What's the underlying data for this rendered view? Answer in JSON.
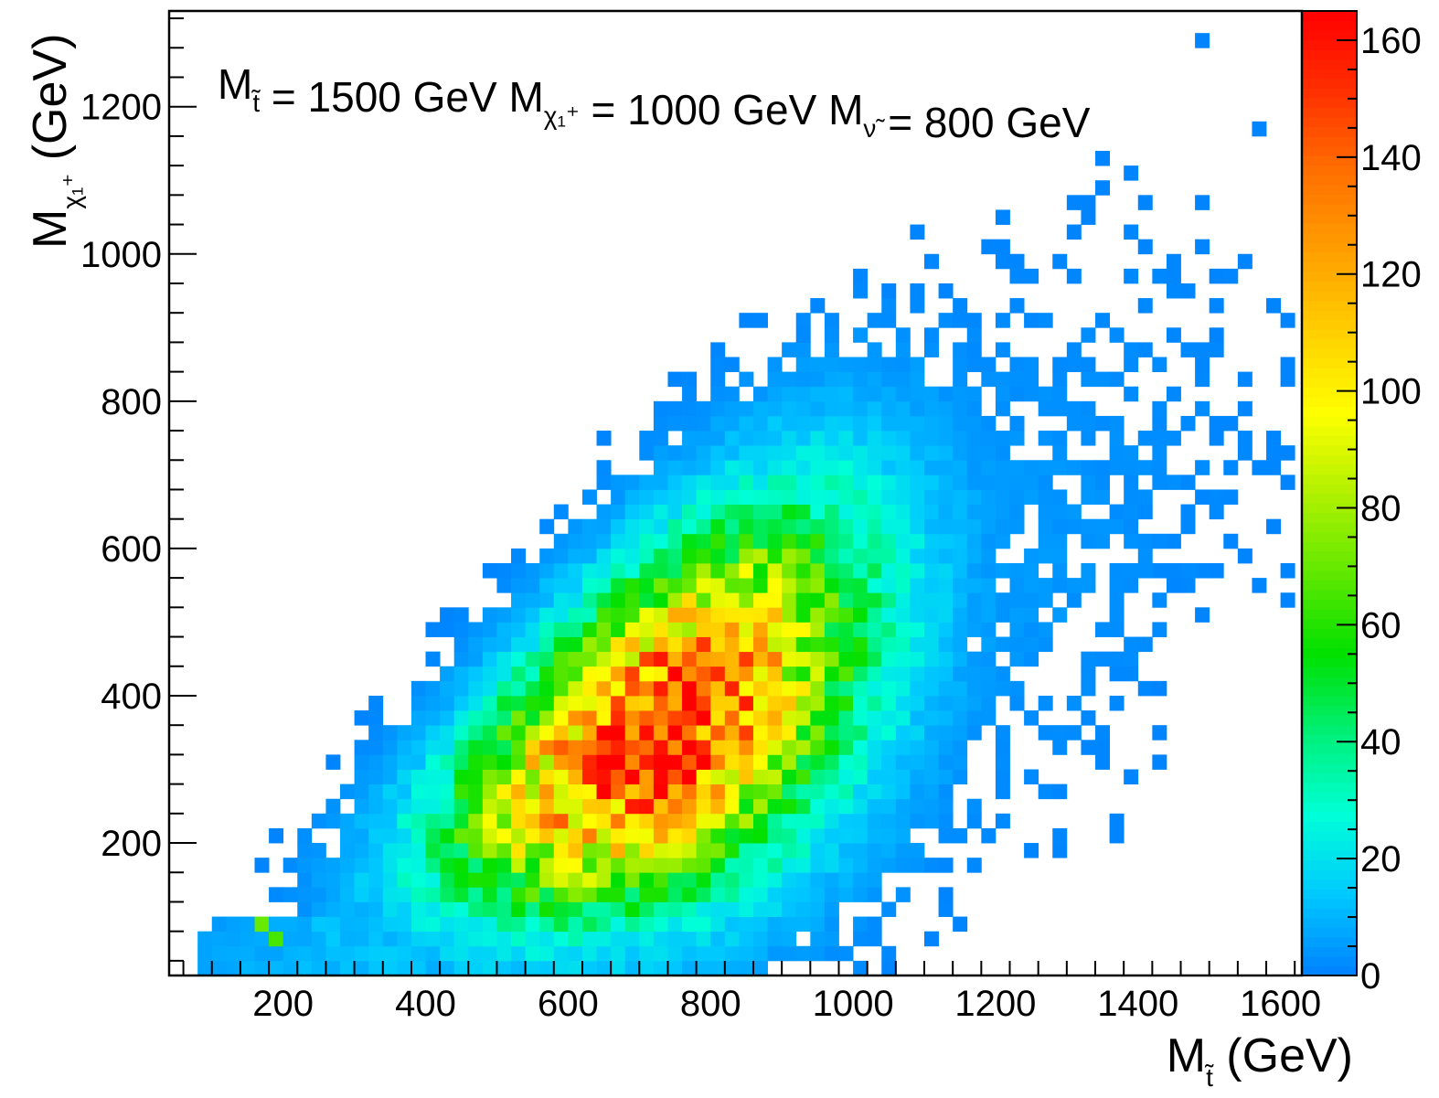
{
  "chart_data": {
    "type": "heatmap",
    "annotation": {
      "parts": [
        {
          "text": "M",
          "sub": "t̃"
        },
        {
          "text": " = 1500 GeV M",
          "sub": "χ₁⁺"
        },
        {
          "text": " = 1000 GeV M",
          "sub": "ν̃"
        },
        {
          "text": " = 800 GeV",
          "sub": ""
        }
      ]
    },
    "xlabel": {
      "main": "M",
      "sub": "t̃",
      "unit": " (GeV)"
    },
    "ylabel": {
      "main": "M",
      "sub": "χ₁⁺",
      "unit": " (GeV)"
    },
    "xlim": [
      40,
      1630
    ],
    "ylim": [
      20,
      1330
    ],
    "zlim": [
      0,
      165
    ],
    "x_ticks": [
      200,
      400,
      600,
      800,
      1000,
      1200,
      1400,
      1600
    ],
    "x_tick_labels": [
      "200",
      "400",
      "600",
      "800",
      "1000",
      "1200",
      "1400",
      "1600"
    ],
    "y_ticks": [
      200,
      400,
      600,
      800,
      1000,
      1200
    ],
    "y_tick_labels": [
      "200",
      "400",
      "600",
      "800",
      "1000",
      "1200"
    ],
    "z_ticks": [
      0,
      20,
      40,
      60,
      80,
      100,
      120,
      140,
      160
    ],
    "z_tick_labels": [
      "0",
      "20",
      "40",
      "60",
      "80",
      "100",
      "120",
      "140",
      "160"
    ],
    "colorscale": [
      "#0080ff",
      "#00c8ff",
      "#00ffd8",
      "#00f07a",
      "#00e000",
      "#60e800",
      "#b0f000",
      "#ffff00",
      "#ffd000",
      "#ffa000",
      "#ff7000",
      "#ff3000",
      "#ff0000"
    ],
    "bin_size": [
      20,
      20
    ],
    "distribution": {
      "population_notes": "Correlated band rising from lower-left toward upper-right; sparse single-entry bins extend to x~1600, y~1300",
      "peak_center": [
        700,
        330
      ],
      "peak_value": 160
    },
    "notable_bins": [
      {
        "x": 650,
        "y": 290,
        "z": 160
      },
      {
        "x": 670,
        "y": 330,
        "z": 155
      },
      {
        "x": 770,
        "y": 370,
        "z": 150
      },
      {
        "x": 690,
        "y": 310,
        "z": 130
      },
      {
        "x": 730,
        "y": 350,
        "z": 125
      },
      {
        "x": 750,
        "y": 390,
        "z": 120
      },
      {
        "x": 810,
        "y": 410,
        "z": 115
      },
      {
        "x": 830,
        "y": 390,
        "z": 110
      },
      {
        "x": 610,
        "y": 270,
        "z": 100
      },
      {
        "x": 590,
        "y": 250,
        "z": 90
      },
      {
        "x": 170,
        "y": 90,
        "z": 70
      },
      {
        "x": 190,
        "y": 70,
        "z": 65
      },
      {
        "x": 1490,
        "y": 1290,
        "z": 1
      },
      {
        "x": 1570,
        "y": 1170,
        "z": 1
      },
      {
        "x": 1350,
        "y": 1130,
        "z": 1
      },
      {
        "x": 1410,
        "y": 1070,
        "z": 1
      },
      {
        "x": 1050,
        "y": 950,
        "z": 1
      },
      {
        "x": 1610,
        "y": 570,
        "z": 1
      }
    ]
  }
}
